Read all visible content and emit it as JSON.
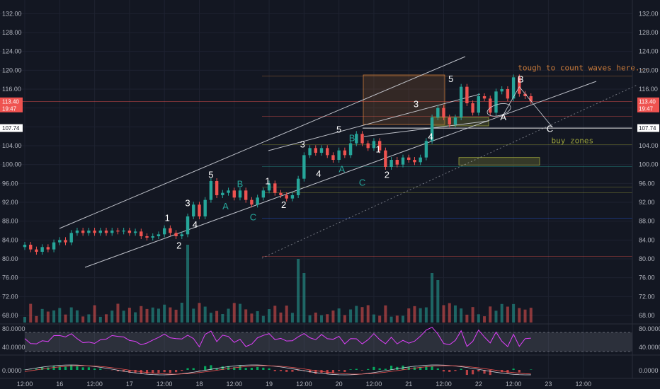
{
  "chart_data": {
    "type": "candlestick",
    "price_axis": {
      "ylim": [
        66.5,
        134
      ],
      "ticks": [
        "132.00",
        "128.00",
        "124.00",
        "120.00",
        "116.00",
        "112.00",
        "108.00",
        "104.00",
        "100.00",
        "96.00",
        "92.00",
        "88.00",
        "84.00",
        "80.00",
        "76.00",
        "72.00",
        "68.00"
      ]
    },
    "time_axis": {
      "labels": [
        "12:00",
        "16",
        "12:00",
        "17",
        "12:00",
        "18",
        "12:00",
        "19",
        "12:00",
        "20",
        "12:00",
        "21",
        "12:00",
        "22",
        "12:00",
        "23",
        "12:00"
      ],
      "positions_hours": [
        12,
        24,
        36,
        48,
        60,
        72,
        84,
        96,
        108,
        120,
        132,
        144,
        156,
        168,
        180,
        192,
        204
      ],
      "range_hours": [
        0,
        210
      ]
    },
    "price_tags": [
      {
        "value": "113.40",
        "color": "#ef5350",
        "price": 113.4
      },
      {
        "value": "19:47",
        "color": "#ef5350",
        "price": 111.9
      },
      {
        "value": "107.74",
        "color": "#ffffff",
        "price": 107.74
      }
    ],
    "candles": [
      [
        0,
        82.5,
        83
      ],
      [
        2,
        83,
        82
      ],
      [
        4,
        82,
        81.5
      ],
      [
        6,
        81.5,
        82.5
      ],
      [
        8,
        82.5,
        82
      ],
      [
        10,
        82,
        83.5
      ],
      [
        12,
        83.5,
        84
      ],
      [
        14,
        84,
        83.5
      ],
      [
        16,
        83.5,
        85.5
      ],
      [
        18,
        85.5,
        86
      ],
      [
        20,
        86,
        85.5
      ],
      [
        22,
        85.5,
        86
      ],
      [
        24,
        86,
        85.5
      ],
      [
        26,
        85.5,
        86
      ],
      [
        28,
        86,
        85.5
      ],
      [
        30,
        85.5,
        86
      ],
      [
        32,
        86,
        85.8
      ],
      [
        34,
        85.8,
        86
      ],
      [
        36,
        86,
        85.5
      ],
      [
        38,
        85.5,
        85.8
      ],
      [
        40,
        85.8,
        84.8
      ],
      [
        42,
        84.8,
        84.5
      ],
      [
        44,
        84.5,
        84.8
      ],
      [
        46,
        84.8,
        85.2
      ],
      [
        48,
        85.2,
        86.5
      ],
      [
        50,
        86.5,
        85.5
      ],
      [
        52,
        85.5,
        84.8
      ],
      [
        54,
        84.8,
        85.2
      ],
      [
        56,
        85.2,
        89
      ],
      [
        58,
        89,
        91.5
      ],
      [
        60,
        91.5,
        89
      ],
      [
        62,
        89,
        92.5
      ],
      [
        64,
        92.5,
        96.5
      ],
      [
        66,
        96.5,
        93.5
      ],
      [
        68,
        93.5,
        94
      ],
      [
        70,
        94,
        94.5
      ],
      [
        72,
        94.5,
        93
      ],
      [
        74,
        93,
        94.5
      ],
      [
        76,
        94.5,
        92.5
      ],
      [
        78,
        92.5,
        91.5
      ],
      [
        80,
        91.5,
        93
      ],
      [
        82,
        93,
        94.5
      ],
      [
        84,
        94.5,
        96
      ],
      [
        86,
        96,
        94
      ],
      [
        88,
        94,
        93.5
      ],
      [
        90,
        93.5,
        92.8
      ],
      [
        92,
        92.8,
        93.5
      ],
      [
        94,
        93.5,
        97
      ],
      [
        96,
        97,
        102
      ],
      [
        98,
        102,
        103.5
      ],
      [
        100,
        103.5,
        102.5
      ],
      [
        102,
        102.5,
        103.5
      ],
      [
        104,
        103.5,
        102
      ],
      [
        106,
        102,
        101
      ],
      [
        108,
        101,
        103
      ],
      [
        110,
        103,
        102
      ],
      [
        112,
        102,
        104.5
      ],
      [
        114,
        104.5,
        106.5
      ],
      [
        116,
        106.5,
        104.5
      ],
      [
        118,
        104.5,
        103.5
      ],
      [
        120,
        103.5,
        105
      ],
      [
        122,
        105,
        103
      ],
      [
        124,
        103,
        99.5
      ],
      [
        126,
        99.5,
        101
      ],
      [
        128,
        101,
        100
      ],
      [
        130,
        100,
        101.5
      ],
      [
        132,
        101.5,
        101
      ],
      [
        134,
        101,
        100.5
      ],
      [
        136,
        100.5,
        101.5
      ],
      [
        138,
        101.5,
        105
      ],
      [
        140,
        105,
        110
      ],
      [
        142,
        110,
        112
      ],
      [
        144,
        112,
        110
      ],
      [
        146,
        110,
        108.5
      ],
      [
        148,
        108.5,
        110
      ],
      [
        150,
        110,
        116.5
      ],
      [
        152,
        116.5,
        113
      ],
      [
        154,
        113,
        111
      ],
      [
        156,
        111,
        114.5
      ],
      [
        158,
        114.5,
        114
      ],
      [
        160,
        114,
        111
      ],
      [
        162,
        111,
        115.5
      ],
      [
        164,
        115.5,
        116
      ],
      [
        166,
        116,
        114
      ],
      [
        168,
        114,
        118.5
      ],
      [
        170,
        118.5,
        115
      ],
      [
        172,
        115,
        114.5
      ],
      [
        174,
        114.5,
        113.4
      ]
    ],
    "wave_labels": [
      {
        "text": "1",
        "hour": 49,
        "price": 88,
        "color": "white"
      },
      {
        "text": "2",
        "hour": 53,
        "price": 82.2,
        "color": "white"
      },
      {
        "text": "3",
        "hour": 56,
        "price": 91.2,
        "color": "white"
      },
      {
        "text": "4",
        "hour": 58.5,
        "price": 86.6,
        "color": "white"
      },
      {
        "text": "5",
        "hour": 64,
        "price": 97.2,
        "color": "white"
      },
      {
        "text": "A",
        "hour": 69,
        "price": 90.5,
        "color": "teal"
      },
      {
        "text": "B",
        "hour": 74,
        "price": 95.2,
        "color": "teal"
      },
      {
        "text": "C",
        "hour": 78.5,
        "price": 88.2,
        "color": "teal"
      },
      {
        "text": "1",
        "hour": 83.5,
        "price": 95.8,
        "color": "white"
      },
      {
        "text": "2",
        "hour": 89,
        "price": 90.8,
        "color": "white"
      },
      {
        "text": "3",
        "hour": 95.5,
        "price": 103.6,
        "color": "white"
      },
      {
        "text": "4",
        "hour": 101,
        "price": 97.4,
        "color": "white"
      },
      {
        "text": "5",
        "hour": 108,
        "price": 106.8,
        "color": "white"
      },
      {
        "text": "A",
        "hour": 109,
        "price": 98.4,
        "color": "teal"
      },
      {
        "text": "B",
        "hour": 112.5,
        "price": 105,
        "color": "teal"
      },
      {
        "text": "C",
        "hour": 116,
        "price": 95.5,
        "color": "teal"
      },
      {
        "text": "1",
        "hour": 121.5,
        "price": 102.6,
        "color": "white"
      },
      {
        "text": "2",
        "hour": 124.5,
        "price": 97.2,
        "color": "white"
      },
      {
        "text": "3",
        "hour": 134.5,
        "price": 112.2,
        "color": "white"
      },
      {
        "text": "4",
        "hour": 139.5,
        "price": 105.3,
        "color": "white"
      },
      {
        "text": "5",
        "hour": 146.5,
        "price": 117.5,
        "color": "white"
      },
      {
        "text": "A",
        "hour": 164.5,
        "price": 109.4,
        "color": "white"
      },
      {
        "text": "B",
        "hour": 170.5,
        "price": 117.4,
        "color": "white"
      },
      {
        "text": "C",
        "hour": 180.5,
        "price": 106.9,
        "color": "white"
      }
    ],
    "annotations": [
      {
        "text": "tough to count waves here...",
        "hour": 169.5,
        "price": 120,
        "color": "#c87a3a"
      },
      {
        "text": "buy zones",
        "hour": 181,
        "price": 104.5,
        "color": "#9aa13a"
      }
    ],
    "rsi_panel": {
      "ticks": [
        "80.0000",
        "40.0000"
      ],
      "levels": [
        80,
        40
      ],
      "band": [
        70,
        30
      ]
    },
    "macd_panel": {
      "ticks": [
        "0.0000"
      ]
    }
  }
}
